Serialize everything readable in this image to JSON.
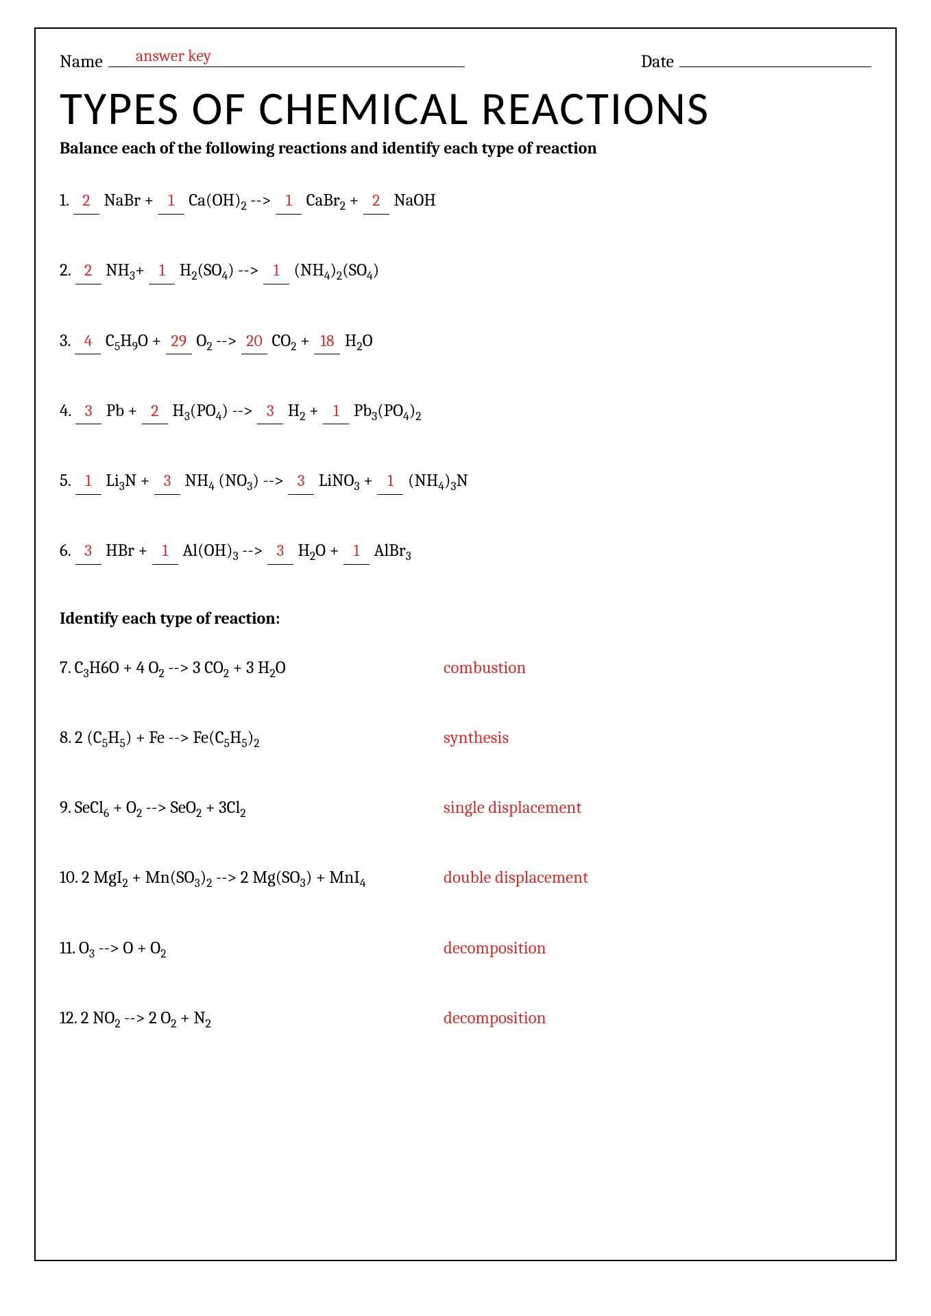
{
  "colors": {
    "text": "#000000",
    "answer": "#cc3333",
    "background": "#ffffff",
    "border": "#000000"
  },
  "header": {
    "name_label": "Name",
    "date_label": "Date",
    "name_answer": "answer key"
  },
  "title": "TYPES OF CHEMICAL REACTIONS",
  "subtitle": "Balance each of the following reactions and identify each type of reaction",
  "balance_problems": [
    {
      "num": "1.",
      "parts": [
        {
          "coef": "2",
          "formula": "NaBr"
        },
        {
          "op": " + "
        },
        {
          "coef": "1",
          "formula": "Ca(OH)",
          "sub": "2"
        },
        {
          "op": " --> "
        },
        {
          "coef": "1",
          "formula": "CaBr",
          "sub": "2"
        },
        {
          "op": " + "
        },
        {
          "coef": "2",
          "formula": "NaOH"
        }
      ]
    },
    {
      "num": "2.",
      "parts": [
        {
          "coef": "2",
          "formula": "NH",
          "sub": "3"
        },
        {
          "op": "+ "
        },
        {
          "coef": "1",
          "formula": "H",
          "sub": "2",
          "tail": "(SO",
          "tailsub": "4",
          "tailend": ")"
        },
        {
          "op": " --> "
        },
        {
          "coef": "1",
          "formula": "(NH",
          "sub": "4",
          "tail": ")",
          "tailsub": "2",
          "tailend": "(SO",
          "tailsub2": "4",
          "tailend2": ")"
        }
      ]
    },
    {
      "num": "3.",
      "parts": [
        {
          "coef": "4",
          "formula": "C",
          "sub": "5",
          "tail": "H",
          "tailsub": "9",
          "tailend": "O"
        },
        {
          "op": " + "
        },
        {
          "coef": "29",
          "formula": "O",
          "sub": "2"
        },
        {
          "op": " --> "
        },
        {
          "coef": "20",
          "formula": "CO",
          "sub": "2"
        },
        {
          "op": " + "
        },
        {
          "coef": "18",
          "formula": "H",
          "sub": "2",
          "tail": "O"
        }
      ]
    },
    {
      "num": "4.",
      "parts": [
        {
          "coef": "3",
          "formula": "Pb"
        },
        {
          "op": " + "
        },
        {
          "coef": "2",
          "formula": "H",
          "sub": "3",
          "tail": "(PO",
          "tailsub": "4",
          "tailend": ")"
        },
        {
          "op": " --> "
        },
        {
          "coef": "3",
          "formula": "H",
          "sub": "2"
        },
        {
          "op": " + "
        },
        {
          "coef": "1",
          "formula": "Pb",
          "sub": "3",
          "tail": "(PO",
          "tailsub": "4",
          "tailend": ")",
          "tailsub2": "2"
        }
      ]
    },
    {
      "num": "5.",
      "parts": [
        {
          "coef": "1",
          "formula": "Li",
          "sub": "3",
          "tail": "N"
        },
        {
          "op": " + "
        },
        {
          "coef": "3",
          "formula": "NH",
          "sub": "4",
          "tail": " (NO",
          "tailsub": "3",
          "tailend": ")"
        },
        {
          "op": " --> "
        },
        {
          "coef": "3",
          "formula": "LiNO",
          "sub": "3"
        },
        {
          "op": " + "
        },
        {
          "coef": "1",
          "formula": "(NH",
          "sub": "4",
          "tail": ")",
          "tailsub": "3",
          "tailend": "N"
        }
      ]
    },
    {
      "num": "6.",
      "parts": [
        {
          "coef": "3",
          "formula": "HBr"
        },
        {
          "op": " + "
        },
        {
          "coef": "1",
          "formula": "Al(OH)",
          "sub": "3"
        },
        {
          "op": " --> "
        },
        {
          "coef": "3",
          "formula": "H",
          "sub": "2",
          "tail": "O"
        },
        {
          "op": " + "
        },
        {
          "coef": "1",
          "formula": "AlBr",
          "sub": "3"
        }
      ]
    }
  ],
  "identify_label": "Identify each type of reaction:",
  "identify_problems": [
    {
      "num": "7.",
      "eq_parts": [
        "C",
        "sub:3",
        "H6O + 4 O",
        "sub:2",
        " --> 3 CO",
        "sub:2",
        " + 3 H",
        "sub:2",
        "O"
      ],
      "answer": "combustion"
    },
    {
      "num": "8.",
      "eq_parts": [
        "2 (C",
        "sub:5",
        "H",
        "sub:5",
        ") + Fe --> Fe(C",
        "sub:5",
        "H",
        "sub:5",
        ")",
        "sub:2"
      ],
      "answer": "synthesis"
    },
    {
      "num": "9.",
      "eq_parts": [
        "SeCl",
        "sub:6",
        " + O",
        "sub:2",
        " --> SeO",
        "sub:2",
        " + 3Cl",
        "sub:2"
      ],
      "answer": "single displacement"
    },
    {
      "num": "10.",
      "eq_parts": [
        "2 MgI",
        "sub:2",
        " + Mn(SO",
        "sub:3",
        ")",
        "sub:2",
        " --> 2 Mg(SO",
        "sub:3",
        ") + MnI",
        "sub:4"
      ],
      "answer": "double displacement"
    },
    {
      "num": "11.",
      "eq_parts": [
        "O",
        "sub:3",
        " --> O + O",
        "sub:2"
      ],
      "answer": "decomposition"
    },
    {
      "num": "12.",
      "eq_parts": [
        "2 NO",
        "sub:2",
        " --> 2 O",
        "sub:2",
        " + N",
        "sub:2"
      ],
      "answer": "decomposition"
    }
  ]
}
